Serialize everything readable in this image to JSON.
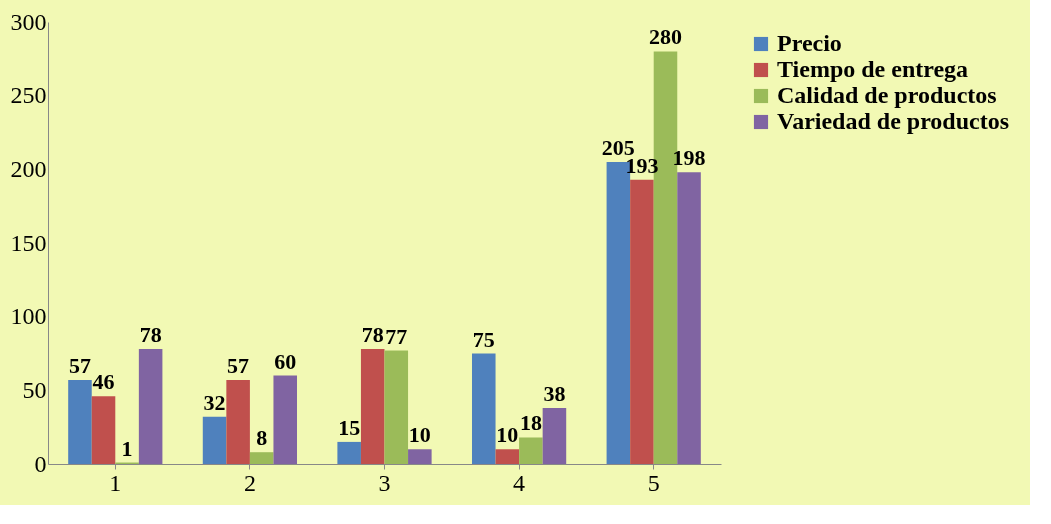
{
  "chart_data": {
    "type": "bar",
    "categories": [
      "1",
      "2",
      "3",
      "4",
      "5"
    ],
    "series": [
      {
        "name": "Precio",
        "color": "#4f81bd",
        "values": [
          57,
          32,
          15,
          75,
          205
        ]
      },
      {
        "name": "Tiempo de entrega",
        "color": "#c0504d",
        "values": [
          46,
          57,
          78,
          10,
          193
        ]
      },
      {
        "name": "Calidad de productos",
        "color": "#9bbb59",
        "values": [
          1,
          8,
          77,
          18,
          280
        ]
      },
      {
        "name": "Variedad de productos",
        "color": "#8064a2",
        "values": [
          78,
          60,
          10,
          38,
          198
        ]
      }
    ],
    "ylim": [
      0,
      300
    ],
    "yticks": [
      0,
      50,
      100,
      150,
      200,
      250,
      300
    ],
    "data_labels": true,
    "legend": "right"
  }
}
